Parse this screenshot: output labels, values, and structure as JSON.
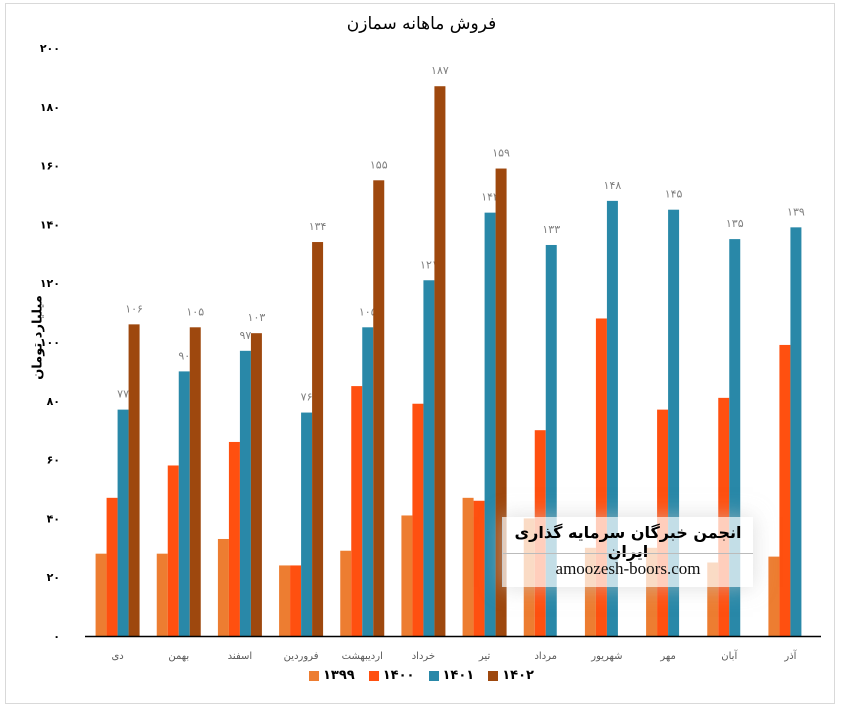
{
  "chart_data": {
    "type": "bar",
    "title": "فروش ماهانه سمازن",
    "ylabel": "میلیارد تومان",
    "xlabel": "",
    "ylim": [
      0,
      200
    ],
    "yticks": [
      0,
      20,
      40,
      60,
      80,
      100,
      120,
      140,
      160,
      180,
      200
    ],
    "grid": false,
    "legend_position": "bottom",
    "categories": [
      "دی",
      "بهمن",
      "اسفند",
      "فروردین",
      "اردیبهشت",
      "خرداد",
      "تیر",
      "مرداد",
      "شهریور",
      "مهر",
      "آبان",
      "آذر"
    ],
    "series": [
      {
        "name": "۱۳۹۹",
        "color": "#ED7D31",
        "values": [
          28,
          28,
          33,
          24,
          29,
          41,
          47,
          40,
          30,
          30,
          25,
          27
        ],
        "labels": false
      },
      {
        "name": "۱۴۰۰",
        "color": "#FF5010",
        "values": [
          47,
          58,
          66,
          24,
          85,
          79,
          46,
          70,
          108,
          77,
          81,
          99
        ],
        "labels": false
      },
      {
        "name": "۱۴۰۱",
        "color": "#2988A8",
        "values": [
          77,
          90,
          97,
          76,
          105,
          121,
          144,
          133,
          148,
          145,
          135,
          139
        ],
        "labels": true
      },
      {
        "name": "۱۴۰۲",
        "color": "#9E480E",
        "values": [
          106,
          105,
          103,
          134,
          155,
          187,
          159,
          null,
          null,
          null,
          null,
          null
        ],
        "labels": true
      }
    ]
  },
  "watermark": {
    "line1": "انجمن خبرگان سرمایه گذاری ایران",
    "line2": "amoozesh-boors.com"
  }
}
